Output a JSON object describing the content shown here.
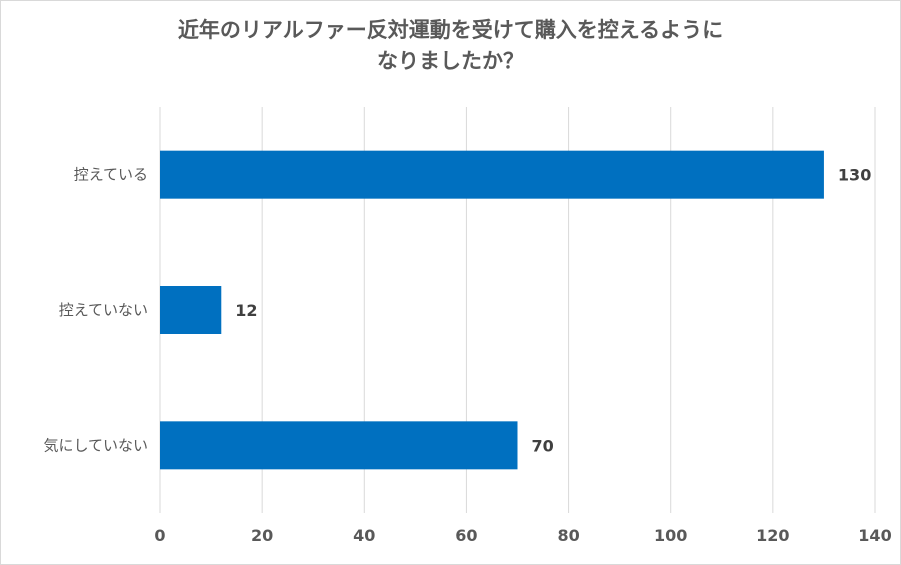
{
  "chart_data": {
    "type": "bar",
    "orientation": "horizontal",
    "title": "近年のリアルファー反対運動を受けて購入を控えるように\nなりましたか？",
    "categories": [
      "控えている",
      "控えていない",
      "気にしていない"
    ],
    "values": [
      130,
      12,
      70
    ],
    "xlim": [
      0,
      140
    ],
    "x_ticks": [
      0,
      20,
      40,
      60,
      80,
      100,
      120,
      140
    ],
    "xlabel": "",
    "ylabel": "",
    "grid": "vertical",
    "legend": "none",
    "bar_color": "#0070c0",
    "grid_color": "#d9d9d9",
    "data_labels": [
      "130",
      "12",
      "70"
    ],
    "tick_labels": [
      "0",
      "20",
      "40",
      "60",
      "80",
      "100",
      "120",
      "140"
    ]
  }
}
